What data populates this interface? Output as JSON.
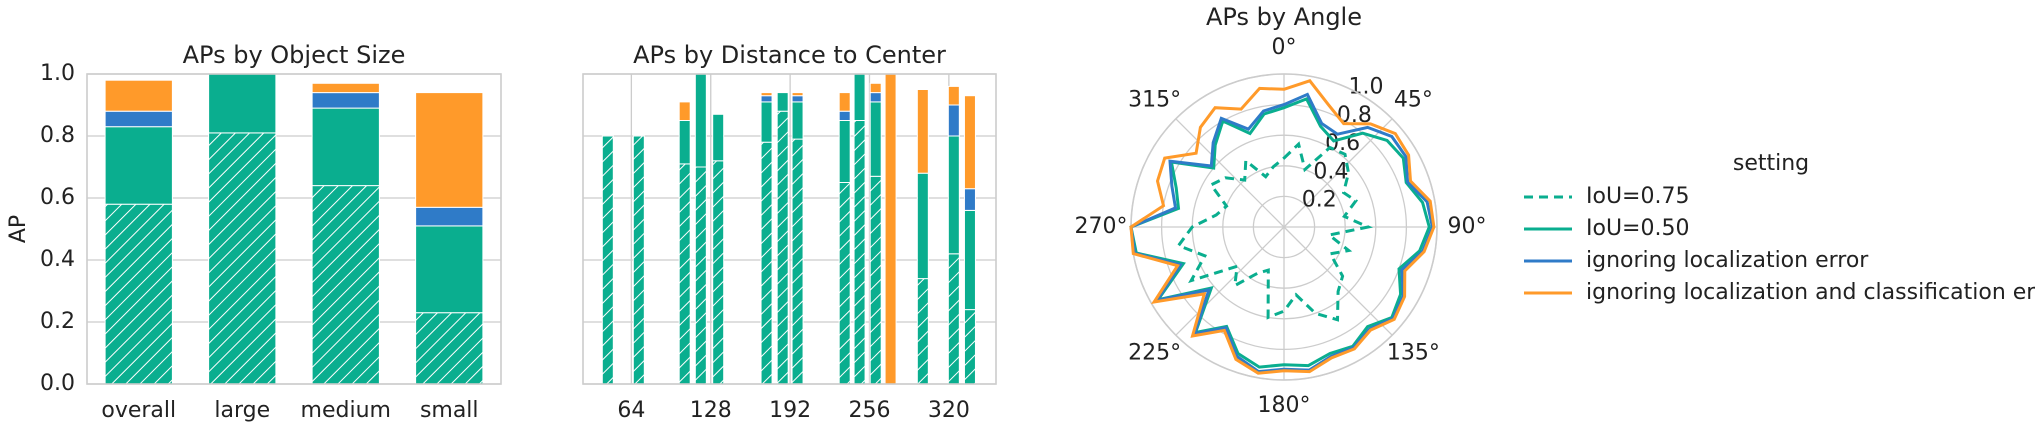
{
  "chart_data": [
    {
      "type": "bar",
      "stacked": true,
      "title": "APs by Object Size",
      "ylabel": "AP",
      "categories": [
        "overall",
        "large",
        "medium",
        "small"
      ],
      "series": [
        {
          "name": "IoU=0.75",
          "color": "#0aae8f",
          "hatch": "//",
          "values": [
            0.58,
            0.81,
            0.64,
            0.23
          ]
        },
        {
          "name": "IoU=0.50",
          "color": "#0aae8f",
          "values": [
            0.25,
            0.19,
            0.25,
            0.28
          ]
        },
        {
          "name": "ignoring localization error",
          "color": "#2f7bc8",
          "values": [
            0.05,
            0,
            0.05,
            0.06
          ]
        },
        {
          "name": "ignoring localization and classification error",
          "color": "#ff9a2a",
          "values": [
            0.1,
            0,
            0.03,
            0.37
          ]
        }
      ],
      "ylim": [
        0,
        1
      ],
      "yticks": [
        {
          "value": 0,
          "label": "0.0"
        },
        0.2,
        0.4,
        0.6,
        0.8,
        {
          "value": 1,
          "label": "1.0"
        }
      ],
      "grid": true
    },
    {
      "type": "bar",
      "stacked": true,
      "title": "APs by Distance to Center",
      "x": [
        45,
        70,
        107,
        120,
        134,
        173,
        186,
        198,
        236,
        248,
        261,
        273,
        299,
        324,
        337
      ],
      "series": [
        {
          "name": "IoU=0.75",
          "color": "#0aae8f",
          "hatch": "//",
          "values": [
            0.8,
            0.8,
            0.71,
            0.7,
            0.72,
            0.78,
            0.88,
            0.79,
            0.65,
            0.85,
            0.67,
            0,
            0.34,
            0.42,
            0.24
          ]
        },
        {
          "name": "IoU=0.50",
          "color": "#0aae8f",
          "values": [
            0,
            0,
            0.14,
            0.3,
            0.15,
            0.13,
            0.06,
            0.12,
            0.2,
            0.15,
            0.24,
            0,
            0.34,
            0.38,
            0.32
          ]
        },
        {
          "name": "ignoring localization error",
          "color": "#2f7bc8",
          "values": [
            0,
            0,
            0,
            0,
            0,
            0.02,
            0,
            0.02,
            0.03,
            0,
            0.03,
            0,
            0,
            0.1,
            0.07
          ]
        },
        {
          "name": "ignoring localization and classification error",
          "color": "#ff9a2a",
          "values": [
            0,
            0,
            0.06,
            0,
            0,
            0.01,
            0,
            0.01,
            0.06,
            0,
            0.03,
            1.0,
            0.27,
            0.06,
            0.3
          ]
        }
      ],
      "xlim": [
        25,
        358
      ],
      "xticks": [
        64,
        128,
        192,
        256,
        320
      ],
      "ylim": [
        0,
        1
      ],
      "yticks": [
        0,
        0.2,
        0.4,
        0.6,
        0.8,
        1
      ],
      "grid": true
    },
    {
      "type": "polar",
      "title": "APs by Angle",
      "theta": [
        0,
        10,
        20,
        30,
        40,
        50,
        60,
        70,
        80,
        90,
        100,
        110,
        120,
        130,
        140,
        150,
        160,
        170,
        180,
        190,
        200,
        210,
        220,
        230,
        240,
        250,
        260,
        270,
        280,
        290,
        300,
        310,
        320,
        330,
        340,
        350
      ],
      "series": [
        {
          "name": "IoU=0.75",
          "color": "#0aae8f",
          "dashed": true,
          "values": [
            0.45,
            0.55,
            0.4,
            0.6,
            0.62,
            0.55,
            0.45,
            0.5,
            0.4,
            0.55,
            0.3,
            0.45,
            0.35,
            0.5,
            0.55,
            0.7,
            0.6,
            0.45,
            0.55,
            0.6,
            0.3,
            0.35,
            0.5,
            0.4,
            0.7,
            0.55,
            0.7,
            0.6,
            0.45,
            0.4,
            0.55,
            0.5,
            0.4,
            0.5,
            0.35,
            0.4
          ]
        },
        {
          "name": "IoU=0.50",
          "color": "#0aae8f",
          "values": [
            0.78,
            0.85,
            0.7,
            0.65,
            0.8,
            0.88,
            0.9,
            0.85,
            0.92,
            0.95,
            0.9,
            0.8,
            0.88,
            0.92,
            0.85,
            0.9,
            0.88,
            0.92,
            0.9,
            0.93,
            0.88,
            0.75,
            0.9,
            0.62,
            0.95,
            0.7,
            0.98,
            1.0,
            0.7,
            0.75,
            0.85,
            0.6,
            0.7,
            0.8,
            0.65,
            0.75
          ]
        },
        {
          "name": "ignoring localization error",
          "color": "#2f7bc8",
          "values": [
            0.8,
            0.88,
            0.72,
            0.7,
            0.85,
            0.92,
            0.92,
            0.86,
            0.95,
            0.97,
            0.92,
            0.82,
            0.9,
            0.93,
            0.87,
            0.91,
            0.9,
            0.95,
            0.93,
            0.96,
            0.9,
            0.76,
            0.91,
            0.64,
            0.96,
            0.72,
            0.99,
            1.0,
            0.72,
            0.78,
            0.86,
            0.62,
            0.72,
            0.82,
            0.68,
            0.77
          ]
        },
        {
          "name": "ignoring localization and classification error",
          "color": "#ff9a2a",
          "values": [
            0.9,
            0.97,
            0.85,
            0.78,
            0.88,
            0.95,
            0.94,
            0.88,
            0.97,
            0.98,
            0.93,
            0.84,
            0.91,
            0.94,
            0.88,
            0.92,
            0.91,
            0.96,
            0.94,
            0.97,
            0.92,
            0.78,
            0.93,
            0.68,
            0.98,
            0.74,
            1.0,
            1.0,
            0.8,
            0.88,
            0.9,
            0.75,
            0.85,
            0.9,
            0.82,
            0.92
          ]
        }
      ],
      "rlim": [
        0,
        1
      ],
      "rticks": [
        0.2,
        0.4,
        0.6,
        0.8,
        {
          "value": 1,
          "label": "1.0"
        }
      ],
      "thetaticks": [
        {
          "value": 0,
          "label": "0°"
        },
        {
          "value": 45,
          "label": "45°"
        },
        {
          "value": 90,
          "label": "90°"
        },
        {
          "value": 135,
          "label": "135°"
        },
        {
          "value": 180,
          "label": "180°"
        },
        {
          "value": 225,
          "label": "225°"
        },
        {
          "value": 270,
          "label": "270°"
        },
        {
          "value": 315,
          "label": "315°"
        }
      ],
      "legend_title": "setting",
      "legend": "right"
    }
  ]
}
